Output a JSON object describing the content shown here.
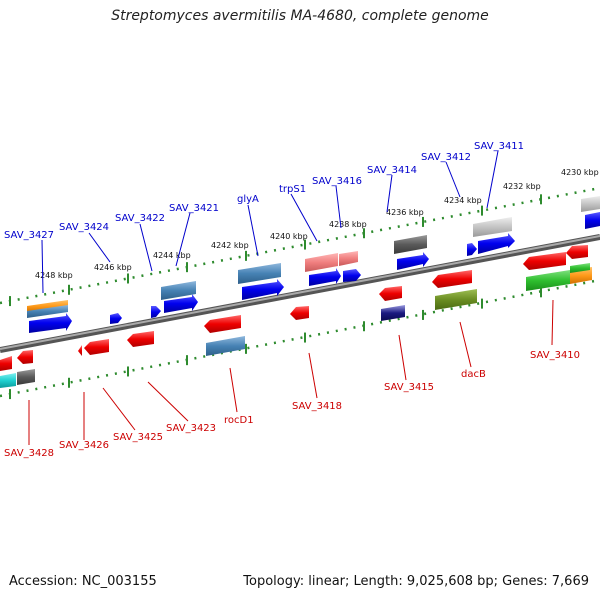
{
  "title": "Streptomyces avermitilis MA-4680, complete genome",
  "accession": "Accession: NC_003155",
  "summary": "Topology: linear; Length: 9,025,608 bp; Genes: 7,669",
  "colors": {
    "forward_label": "#0000cc",
    "reverse_label": "#cc0000",
    "backbone": "#7a7a7a",
    "ruler_dots": "#2e8b2e"
  },
  "scale_labels": [
    "4248 kbp",
    "4246 kbp",
    "4244 kbp",
    "4242 kbp",
    "4240 kbp",
    "4238 kbp",
    "4236 kbp",
    "4234 kbp",
    "4232 kbp",
    "4230 kbp"
  ],
  "forward_genes": [
    "SAV_3427",
    "SAV_3424",
    "SAV_3422",
    "SAV_3421",
    "glyA",
    "trpS1",
    "SAV_3416",
    "SAV_3414",
    "SAV_3412",
    "SAV_3411"
  ],
  "reverse_genes": [
    "SAV_3428",
    "SAV_3426",
    "SAV_3425",
    "SAV_3423",
    "rocD1",
    "SAV_3418",
    "SAV_3415",
    "dacB",
    "SAV_3410"
  ]
}
